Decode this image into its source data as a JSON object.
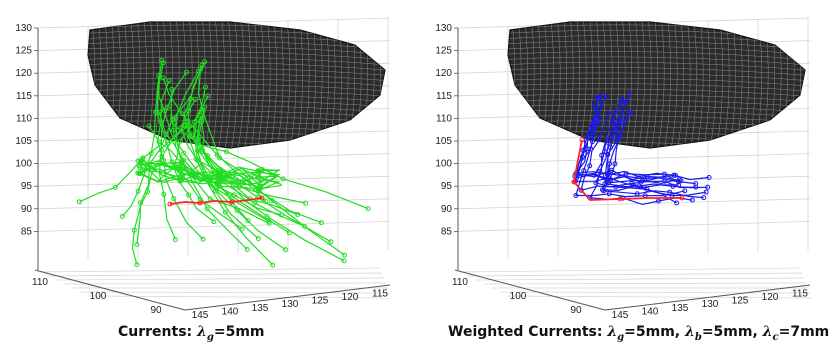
{
  "panels": [
    {
      "id": "left",
      "caption_prefix": "Currents: ",
      "lambdas": [
        {
          "symbol": "λ",
          "sub": "g",
          "value": "=5mm"
        }
      ],
      "fiber_color": "#22dd22",
      "target_color": "#ff2222"
    },
    {
      "id": "right",
      "caption_prefix": "Weighted Currents: ",
      "lambdas": [
        {
          "symbol": "λ",
          "sub": "g",
          "value": "=5mm, "
        },
        {
          "symbol": "λ",
          "sub": "b",
          "value": "=5mm, "
        },
        {
          "symbol": "λ",
          "sub": "c",
          "value": "=7mm"
        }
      ],
      "fiber_color": "#1a1aee",
      "target_color": "#ff2222"
    }
  ],
  "axes": {
    "z_ticks": [
      "130",
      "125",
      "120",
      "115",
      "110",
      "105",
      "100",
      "95",
      "90",
      "85"
    ],
    "x_ticks": [
      "145",
      "140",
      "135",
      "130",
      "125",
      "120",
      "115"
    ],
    "y_ticks": [
      "110",
      "100",
      "90"
    ]
  },
  "colors": {
    "mesh": "#111111",
    "grid": "#d4d4d4",
    "axis": "#555555"
  }
}
